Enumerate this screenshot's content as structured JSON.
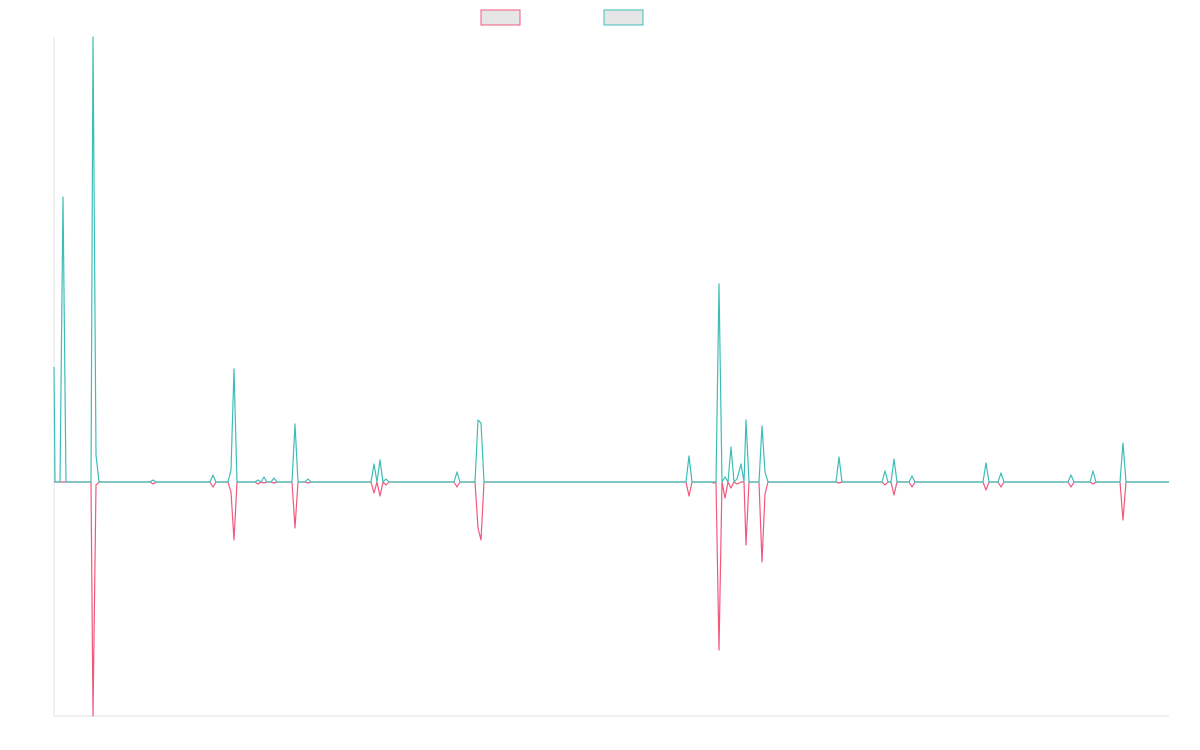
{
  "chart_data": {
    "type": "line",
    "x": [
      0,
      1,
      6,
      9,
      12,
      37,
      39,
      42,
      45,
      96,
      99,
      102,
      156,
      159,
      162,
      174,
      177,
      180,
      183,
      201,
      204,
      207,
      210,
      213,
      217,
      220,
      223,
      238,
      241,
      244,
      251,
      254,
      257,
      317,
      320,
      323,
      326,
      329,
      332,
      335,
      400,
      403,
      406,
      421,
      424,
      427,
      430,
      632,
      635,
      638,
      657,
      660,
      662,
      665,
      668,
      671,
      674,
      677,
      680,
      683,
      687,
      690,
      692,
      695,
      705,
      708,
      711,
      714,
      782,
      785,
      788,
      828,
      831,
      834,
      837,
      840,
      843,
      855,
      858,
      861,
      929,
      932,
      935,
      944,
      947,
      950,
      1014,
      1017,
      1020,
      1036,
      1039,
      1042,
      1066,
      1069,
      1072,
      1115
    ],
    "series": [
      {
        "color": "#f0587e",
        "values": [
          0,
          0,
          0,
          0,
          0,
          0,
          -23.4,
          -0.3,
          0,
          0,
          -0.2,
          0,
          0,
          -0.5,
          0,
          0,
          -1.0,
          -5.8,
          0,
          0,
          -0.2,
          0,
          -0.1,
          0,
          0,
          -0.1,
          0,
          0,
          -4.6,
          0,
          0,
          -0.1,
          0,
          0,
          -1.1,
          0,
          -1.4,
          0,
          -0.3,
          0,
          0,
          -0.5,
          0,
          0,
          -4.6,
          -5.8,
          0,
          0,
          -1.4,
          0,
          0,
          -0.1,
          0,
          -16.8,
          0,
          -1.6,
          0,
          -0.6,
          0,
          -0.2,
          0,
          0,
          -6.3,
          0,
          0,
          -8.0,
          -1.2,
          0,
          0,
          -0.1,
          0,
          0,
          -0.3,
          0,
          0,
          -1.3,
          0,
          0,
          -0.5,
          0,
          0,
          -0.8,
          0,
          0,
          -0.5,
          0,
          0,
          -0.5,
          0,
          0,
          -0.2,
          0,
          0,
          -3.8,
          0,
          0
        ]
      },
      {
        "color": "#3dbdb7",
        "values": [
          11.5,
          0,
          0,
          28.5,
          0,
          0,
          44.5,
          2.7,
          0,
          0,
          0.2,
          0,
          0,
          0.7,
          0,
          0,
          1.2,
          11.3,
          0,
          0,
          0.2,
          0,
          0.5,
          0,
          0,
          0.4,
          0,
          0,
          5.8,
          0,
          0,
          0.3,
          0,
          0,
          1.8,
          0,
          2.2,
          0,
          0.3,
          0,
          0,
          1.0,
          0,
          0,
          6.2,
          5.9,
          0,
          0,
          2.6,
          0,
          0,
          0,
          0,
          19.8,
          0,
          0.5,
          0,
          3.5,
          0,
          0.3,
          1.8,
          0,
          6.2,
          0,
          0,
          5.6,
          1.0,
          0,
          0,
          2.5,
          0,
          0,
          1.1,
          0,
          0,
          2.3,
          0,
          0,
          0.6,
          0,
          0,
          1.9,
          0,
          0,
          0.9,
          0,
          0,
          0.7,
          0,
          0,
          1.1,
          0,
          0,
          3.9,
          0,
          0
        ]
      }
    ],
    "xlim": [
      0,
      1115
    ],
    "ylim": [
      -23.4,
      44.5
    ],
    "grid": false
  }
}
